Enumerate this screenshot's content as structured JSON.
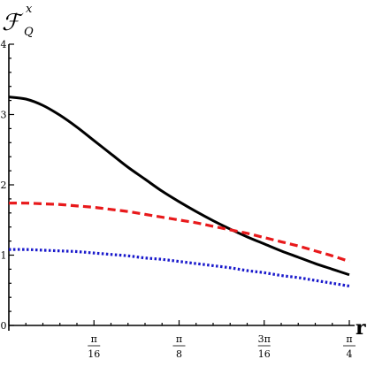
{
  "chart_data": {
    "type": "line",
    "title": "",
    "ylabel": {
      "main": "ℱ",
      "sup": "x",
      "sub": "Q"
    },
    "xlabel": "r",
    "xlim": [
      0,
      0.7854
    ],
    "ylim": [
      0,
      4
    ],
    "yticks": [
      {
        "value": 0,
        "label": "0"
      },
      {
        "value": 1,
        "label": "1"
      },
      {
        "value": 2,
        "label": "2"
      },
      {
        "value": 3,
        "label": "3"
      },
      {
        "value": 4,
        "label": "4"
      }
    ],
    "xticks": [
      {
        "value": 0.19635,
        "num": "π",
        "den": "16"
      },
      {
        "value": 0.3927,
        "num": "π",
        "den": "8"
      },
      {
        "value": 0.58905,
        "num": "3π",
        "den": "16"
      },
      {
        "value": 0.7854,
        "num": "π",
        "den": "4"
      }
    ],
    "series": [
      {
        "color": "#000000",
        "style": "solid",
        "x": [
          0,
          0.0393,
          0.0785,
          0.1178,
          0.1571,
          0.1963,
          0.2356,
          0.2749,
          0.3142,
          0.3534,
          0.3927,
          0.432,
          0.4712,
          0.5105,
          0.5498,
          0.589,
          0.6283,
          0.6676,
          0.7069,
          0.7461,
          0.7854
        ],
        "y": [
          3.25,
          3.22,
          3.13,
          2.99,
          2.82,
          2.63,
          2.44,
          2.25,
          2.08,
          1.91,
          1.76,
          1.62,
          1.49,
          1.37,
          1.26,
          1.16,
          1.06,
          0.97,
          0.88,
          0.8,
          0.72
        ]
      },
      {
        "color": "#e8191b",
        "style": "dashed",
        "x": [
          0,
          0.0393,
          0.0785,
          0.1178,
          0.1571,
          0.1963,
          0.2356,
          0.2749,
          0.3142,
          0.3534,
          0.3927,
          0.432,
          0.4712,
          0.5105,
          0.5498,
          0.589,
          0.6283,
          0.6676,
          0.7069,
          0.7461,
          0.7854
        ],
        "y": [
          1.74,
          1.74,
          1.73,
          1.72,
          1.7,
          1.68,
          1.65,
          1.62,
          1.58,
          1.54,
          1.5,
          1.46,
          1.41,
          1.36,
          1.31,
          1.25,
          1.19,
          1.13,
          1.06,
          0.99,
          0.91
        ]
      },
      {
        "color": "#1a1acc",
        "style": "dotted",
        "x": [
          0,
          0.0393,
          0.0785,
          0.1178,
          0.1571,
          0.1963,
          0.2356,
          0.2749,
          0.3142,
          0.3534,
          0.3927,
          0.432,
          0.4712,
          0.5105,
          0.5498,
          0.589,
          0.6283,
          0.6676,
          0.7069,
          0.7461,
          0.7854
        ],
        "y": [
          1.08,
          1.08,
          1.07,
          1.06,
          1.05,
          1.03,
          1.01,
          0.99,
          0.96,
          0.94,
          0.91,
          0.88,
          0.85,
          0.82,
          0.78,
          0.75,
          0.71,
          0.68,
          0.64,
          0.6,
          0.56
        ]
      }
    ]
  }
}
